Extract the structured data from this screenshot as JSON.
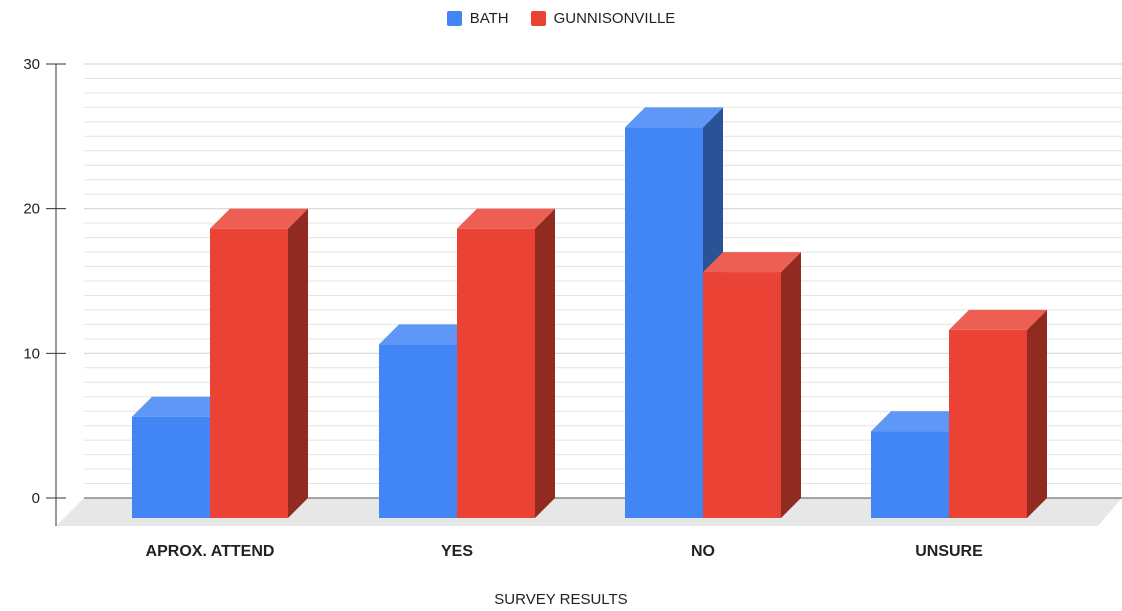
{
  "chart_data": {
    "type": "bar",
    "title": "",
    "xlabel": "SURVEY RESULTS",
    "ylabel": "",
    "categories": [
      "APROX. ATTEND",
      "YES",
      "NO",
      "UNSURE"
    ],
    "series": [
      {
        "name": "BATH",
        "values": [
          7,
          12,
          27,
          6
        ],
        "color": "#4285f4"
      },
      {
        "name": "GUNNISONVILLE",
        "values": [
          20,
          20,
          17,
          13
        ],
        "color": "#ea4335"
      }
    ],
    "ylim": [
      0,
      30
    ],
    "yticks": [
      "0",
      "10",
      "20",
      "30"
    ],
    "grid": true,
    "legend": "top-center",
    "style": "3d"
  }
}
